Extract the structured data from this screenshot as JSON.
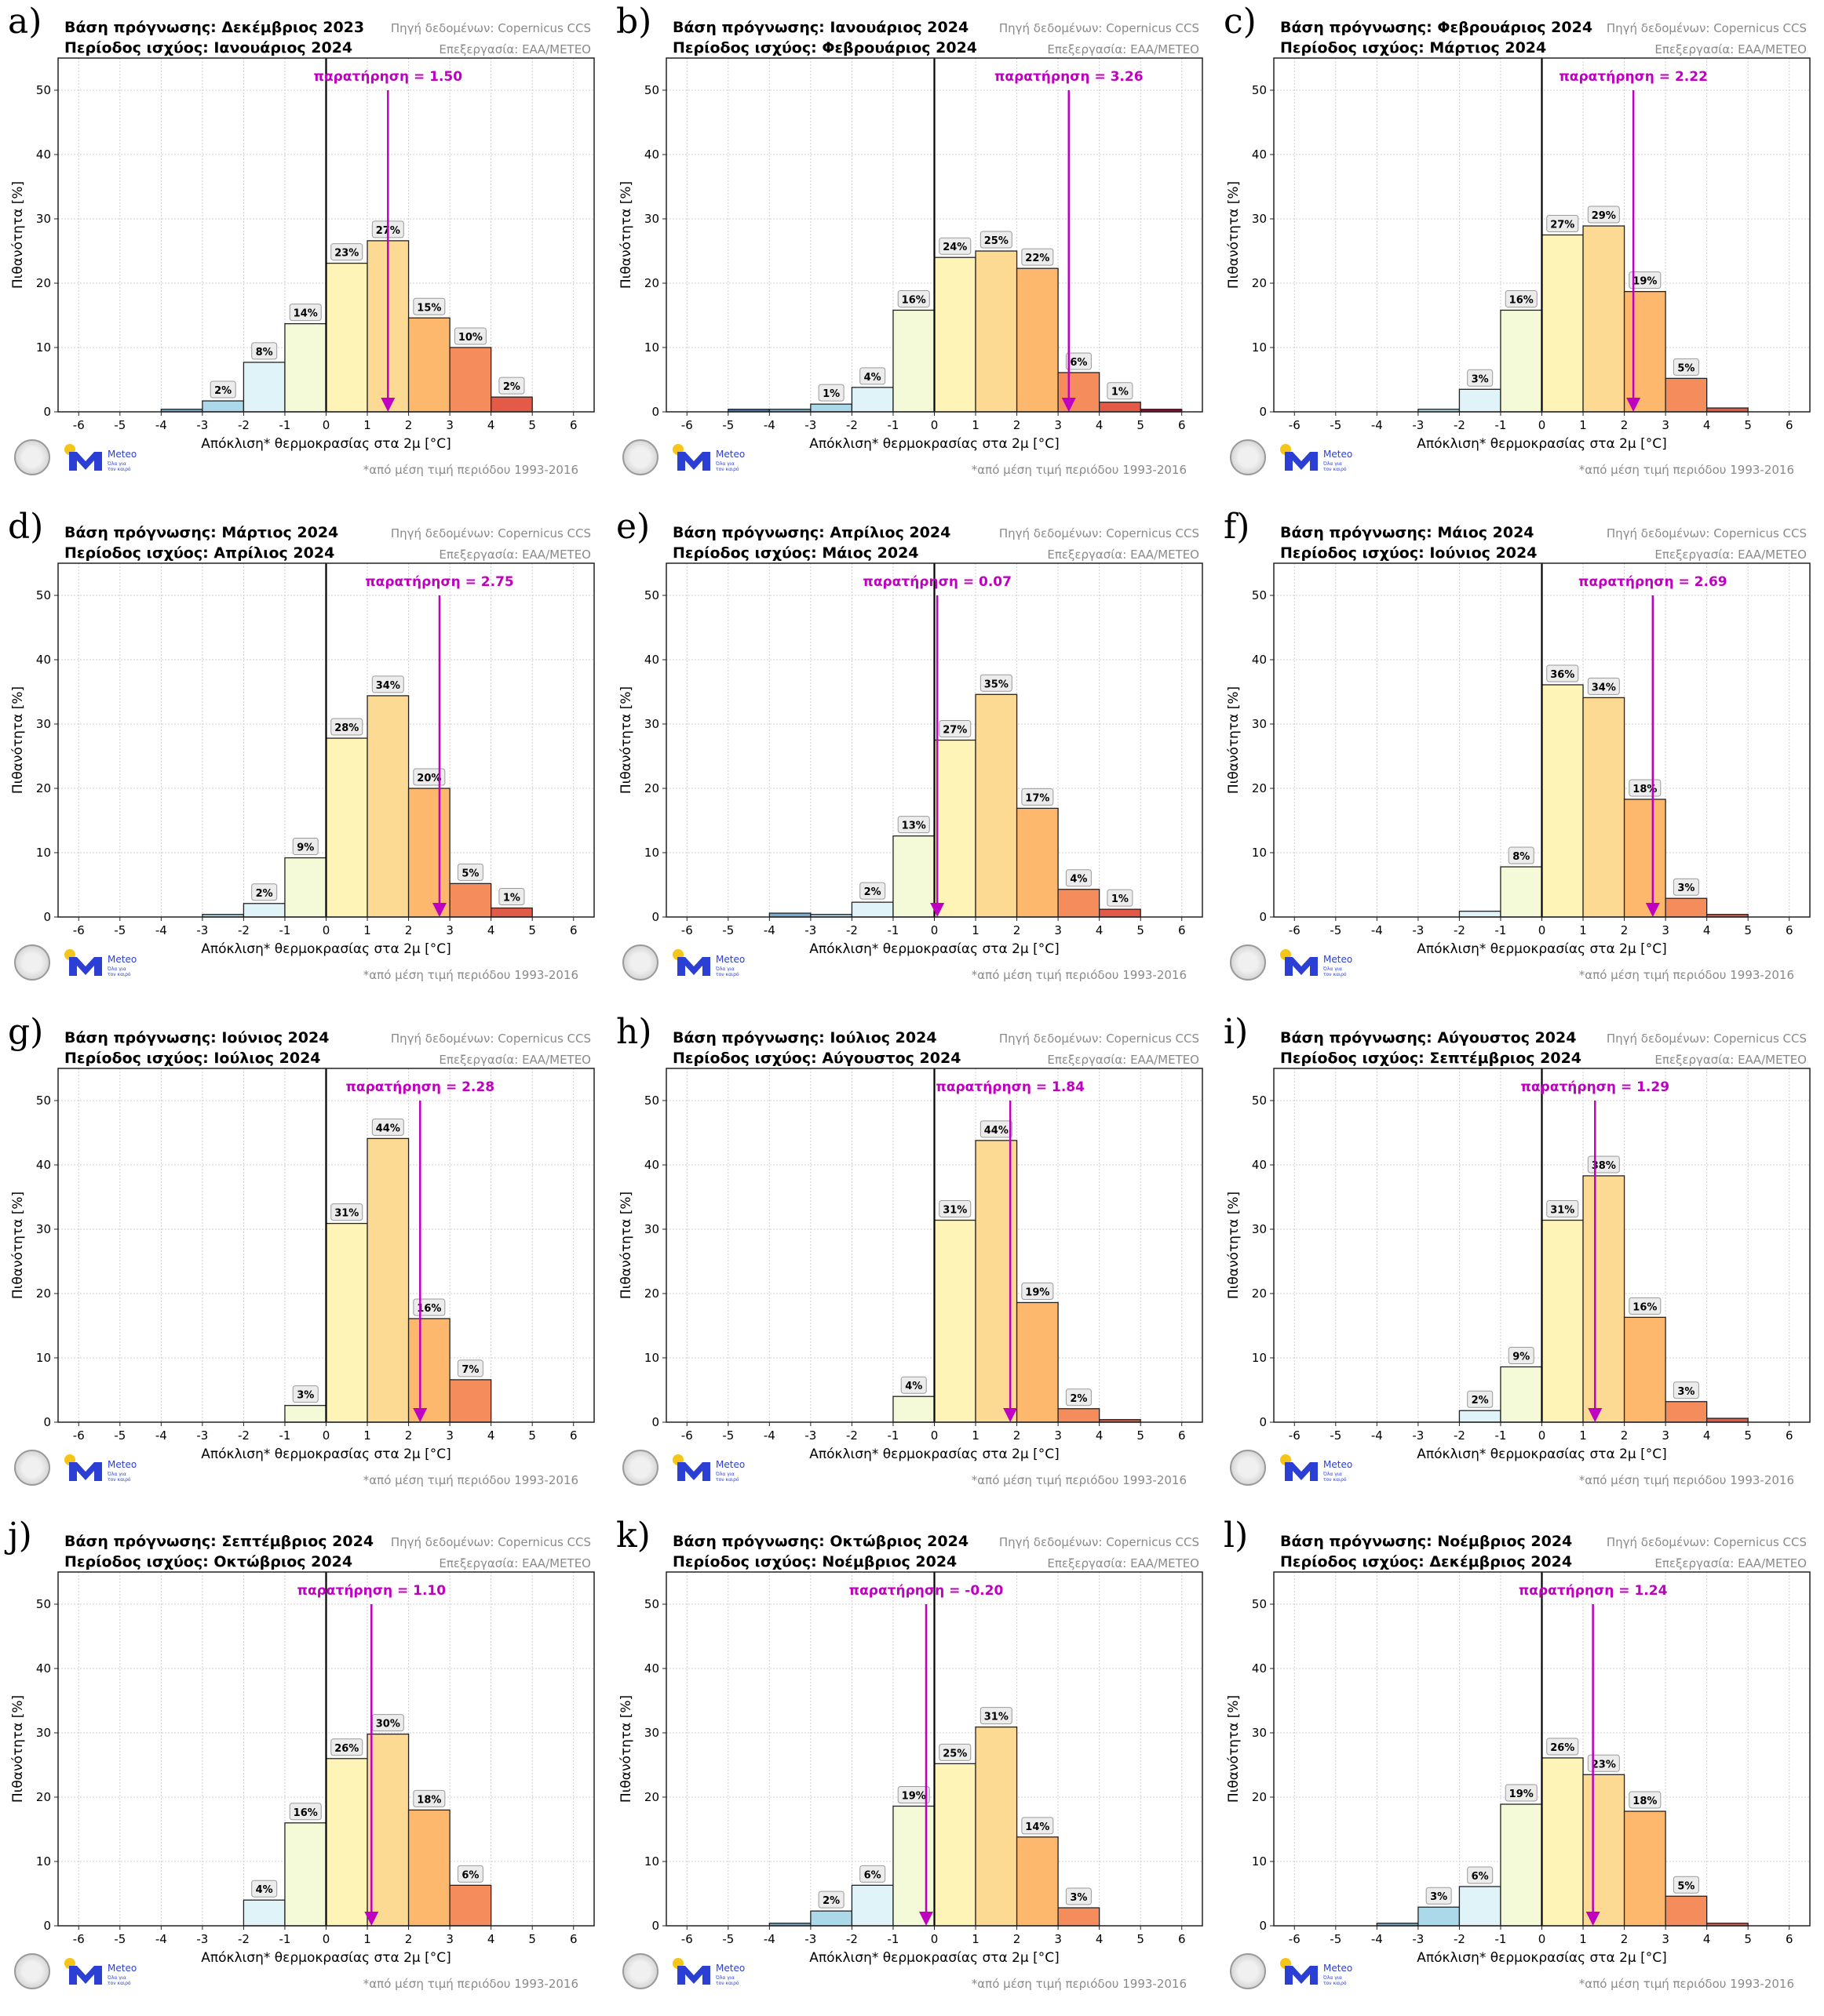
{
  "chart_data": [
    {
      "letter": "a)",
      "type": "bar",
      "forecast_base": "Βάση πρόγνωσης: Δεκέμβριος 2023",
      "valid_period": "Περίοδος ισχύος: Ιανουάριος 2024",
      "observation": 1.5,
      "observation_label": "παρατήρηση = 1.50",
      "bins": [
        [
          -4,
          -3,
          0.4,
          ""
        ],
        [
          -3,
          -2,
          1.7,
          "2%"
        ],
        [
          -2,
          -1,
          7.7,
          "8%"
        ],
        [
          -1,
          0,
          13.7,
          "14%"
        ],
        [
          0,
          1,
          23.1,
          "23%"
        ],
        [
          1,
          2,
          26.6,
          "27%"
        ],
        [
          2,
          3,
          14.6,
          "15%"
        ],
        [
          3,
          4,
          10.0,
          "10%"
        ],
        [
          4,
          5,
          2.3,
          "2%"
        ]
      ]
    },
    {
      "letter": "b)",
      "type": "bar",
      "forecast_base": "Βάση πρόγνωσης: Ιανουάριος 2024",
      "valid_period": "Περίοδος ισχύος: Φεβρουάριος 2024",
      "observation": 3.26,
      "observation_label": "παρατήρηση = 3.26",
      "bins": [
        [
          -5,
          -4,
          0.4,
          ""
        ],
        [
          -4,
          -3,
          0.4,
          ""
        ],
        [
          -3,
          -2,
          1.2,
          "1%"
        ],
        [
          -2,
          -1,
          3.8,
          "4%"
        ],
        [
          -1,
          0,
          15.8,
          "16%"
        ],
        [
          0,
          1,
          24.0,
          "24%"
        ],
        [
          1,
          2,
          25.0,
          "25%"
        ],
        [
          2,
          3,
          22.3,
          "22%"
        ],
        [
          3,
          4,
          6.1,
          "6%"
        ],
        [
          4,
          5,
          1.5,
          "1%"
        ],
        [
          5,
          6,
          0.4,
          ""
        ]
      ]
    },
    {
      "letter": "c)",
      "type": "bar",
      "forecast_base": "Βάση πρόγνωσης: Φεβρουάριος 2024",
      "valid_period": "Περίοδος ισχύος: Μάρτιος 2024",
      "observation": 2.22,
      "observation_label": "παρατήρηση = 2.22",
      "bins": [
        [
          -3,
          -2,
          0.4,
          ""
        ],
        [
          -2,
          -1,
          3.5,
          "3%"
        ],
        [
          -1,
          0,
          15.8,
          "16%"
        ],
        [
          0,
          1,
          27.5,
          "27%"
        ],
        [
          1,
          2,
          28.9,
          "29%"
        ],
        [
          2,
          3,
          18.7,
          "19%"
        ],
        [
          3,
          4,
          5.2,
          "5%"
        ],
        [
          4,
          5,
          0.6,
          ""
        ]
      ]
    },
    {
      "letter": "d)",
      "type": "bar",
      "forecast_base": "Βάση πρόγνωσης: Μάρτιος 2024",
      "valid_period": "Περίοδος ισχύος: Απρίλιος 2024",
      "observation": 2.75,
      "observation_label": "παρατήρηση = 2.75",
      "bins": [
        [
          -3,
          -2,
          0.4,
          ""
        ],
        [
          -2,
          -1,
          2.1,
          "2%"
        ],
        [
          -1,
          0,
          9.2,
          "9%"
        ],
        [
          0,
          1,
          27.8,
          "28%"
        ],
        [
          1,
          2,
          34.4,
          "34%"
        ],
        [
          2,
          3,
          20.0,
          "20%"
        ],
        [
          3,
          4,
          5.2,
          "5%"
        ],
        [
          4,
          5,
          1.4,
          "1%"
        ]
      ]
    },
    {
      "letter": "e)",
      "type": "bar",
      "forecast_base": "Βάση πρόγνωσης: Απρίλιος 2024",
      "valid_period": "Περίοδος ισχύος: Μάιος 2024",
      "observation": 0.07,
      "observation_label": "παρατήρηση = 0.07",
      "bins": [
        [
          -4,
          -3,
          0.6,
          ""
        ],
        [
          -3,
          -2,
          0.4,
          ""
        ],
        [
          -2,
          -1,
          2.3,
          "2%"
        ],
        [
          -1,
          0,
          12.6,
          "13%"
        ],
        [
          0,
          1,
          27.5,
          "27%"
        ],
        [
          1,
          2,
          34.6,
          "35%"
        ],
        [
          2,
          3,
          16.9,
          "17%"
        ],
        [
          3,
          4,
          4.3,
          "4%"
        ],
        [
          4,
          5,
          1.2,
          "1%"
        ]
      ]
    },
    {
      "letter": "f)",
      "type": "bar",
      "forecast_base": "Βάση πρόγνωσης: Μάιος 2024",
      "valid_period": "Περίοδος ισχύος: Ιούνιος 2024",
      "observation": 2.69,
      "observation_label": "παρατήρηση = 2.69",
      "bins": [
        [
          -2,
          -1,
          0.9,
          ""
        ],
        [
          -1,
          0,
          7.8,
          "8%"
        ],
        [
          0,
          1,
          36.1,
          "36%"
        ],
        [
          1,
          2,
          34.1,
          "34%"
        ],
        [
          2,
          3,
          18.3,
          "18%"
        ],
        [
          3,
          4,
          2.9,
          "3%"
        ],
        [
          4,
          5,
          0.4,
          ""
        ]
      ]
    },
    {
      "letter": "g)",
      "type": "bar",
      "forecast_base": "Βάση πρόγνωσης: Ιούνιος 2024",
      "valid_period": "Περίοδος ισχύος: Ιούλιος 2024",
      "observation": 2.28,
      "observation_label": "παρατήρηση = 2.28",
      "bins": [
        [
          -1,
          0,
          2.6,
          "3%"
        ],
        [
          0,
          1,
          30.9,
          "31%"
        ],
        [
          1,
          2,
          44.1,
          "44%"
        ],
        [
          2,
          3,
          16.1,
          "16%"
        ],
        [
          3,
          4,
          6.6,
          "7%"
        ]
      ]
    },
    {
      "letter": "h)",
      "type": "bar",
      "forecast_base": "Βάση πρόγνωσης: Ιούλιος 2024",
      "valid_period": "Περίοδος ισχύος: Αύγουστος 2024",
      "observation": 1.84,
      "observation_label": "παρατήρηση = 1.84",
      "bins": [
        [
          -1,
          0,
          4.0,
          "4%"
        ],
        [
          0,
          1,
          31.4,
          "31%"
        ],
        [
          1,
          2,
          43.8,
          "44%"
        ],
        [
          2,
          3,
          18.6,
          "19%"
        ],
        [
          3,
          4,
          2.1,
          "2%"
        ],
        [
          4,
          5,
          0.4,
          ""
        ]
      ]
    },
    {
      "letter": "i)",
      "type": "bar",
      "forecast_base": "Βάση πρόγνωσης: Αύγουστος 2024",
      "valid_period": "Περίοδος ισχύος: Σεπτέμβριος 2024",
      "observation": 1.29,
      "observation_label": "παρατήρηση = 1.29",
      "bins": [
        [
          -2,
          -1,
          1.8,
          "2%"
        ],
        [
          -1,
          0,
          8.6,
          "9%"
        ],
        [
          0,
          1,
          31.4,
          "31%"
        ],
        [
          1,
          2,
          38.3,
          "38%"
        ],
        [
          2,
          3,
          16.3,
          "16%"
        ],
        [
          3,
          4,
          3.2,
          "3%"
        ],
        [
          4,
          5,
          0.6,
          ""
        ]
      ]
    },
    {
      "letter": "j)",
      "type": "bar",
      "forecast_base": "Βάση πρόγνωσης: Σεπτέμβριος 2024",
      "valid_period": "Περίοδος ισχύος: Οκτώβριος 2024",
      "observation": 1.1,
      "observation_label": "παρατήρηση = 1.10",
      "bins": [
        [
          -2,
          -1,
          4.0,
          "4%"
        ],
        [
          -1,
          0,
          16.0,
          "16%"
        ],
        [
          0,
          1,
          26.0,
          "26%"
        ],
        [
          1,
          2,
          29.8,
          "30%"
        ],
        [
          2,
          3,
          18.0,
          "18%"
        ],
        [
          3,
          4,
          6.3,
          "6%"
        ]
      ]
    },
    {
      "letter": "k)",
      "type": "bar",
      "forecast_base": "Βάση πρόγνωσης: Οκτώβριος 2024",
      "valid_period": "Περίοδος ισχύος: Νοέμβριος 2024",
      "observation": -0.2,
      "observation_label": "παρατήρηση = -0.20",
      "bins": [
        [
          -4,
          -3,
          0.4,
          ""
        ],
        [
          -3,
          -2,
          2.3,
          "2%"
        ],
        [
          -2,
          -1,
          6.3,
          "6%"
        ],
        [
          -1,
          0,
          18.6,
          "19%"
        ],
        [
          0,
          1,
          25.2,
          "25%"
        ],
        [
          1,
          2,
          30.9,
          "31%"
        ],
        [
          2,
          3,
          13.8,
          "14%"
        ],
        [
          3,
          4,
          2.8,
          "3%"
        ]
      ]
    },
    {
      "letter": "l)",
      "type": "bar",
      "forecast_base": "Βάση πρόγνωσης: Νοέμβριος 2024",
      "valid_period": "Περίοδος ισχύος: Δεκέμβριος 2024",
      "observation": 1.24,
      "observation_label": "παρατήρηση = 1.24",
      "bins": [
        [
          -4,
          -3,
          0.4,
          ""
        ],
        [
          -3,
          -2,
          2.9,
          "3%"
        ],
        [
          -2,
          -1,
          6.1,
          "6%"
        ],
        [
          -1,
          0,
          18.9,
          "19%"
        ],
        [
          0,
          1,
          26.1,
          "26%"
        ],
        [
          1,
          2,
          23.5,
          "23%"
        ],
        [
          2,
          3,
          17.8,
          "18%"
        ],
        [
          3,
          4,
          4.6,
          "5%"
        ],
        [
          4,
          5,
          0.4,
          ""
        ]
      ]
    }
  ],
  "common": {
    "source_label": "Πηγή δεδομένων: Copernicus CCS",
    "processing_label": "Επεξεργασία: ΕΑΑ/METEO",
    "xlabel": "Απόκλιση* θερμοκρασίας στα 2μ [°C]",
    "ylabel": "Πιθανότητα [%]",
    "footnote": "*από μέση τιμή περιόδου 1993-2016",
    "xticks": [
      -6,
      -5,
      -4,
      -3,
      -2,
      -1,
      0,
      1,
      2,
      3,
      4,
      5,
      6
    ],
    "yticks": [
      0,
      10,
      20,
      30,
      40,
      50
    ],
    "xlim": [
      -6.5,
      6.5
    ],
    "ylim": [
      0,
      55
    ],
    "grid": true,
    "logo_name": "Meteo",
    "logo_tagline": "Όλα για τον καιρό",
    "observation_color": "#c000c0",
    "bin_colors": {
      "-6": "#313695",
      "-5": "#4575b4",
      "-4": "#74add1",
      "-3": "#abd9e9",
      "-2": "#e0f3f8",
      "-1": "#f4fad8",
      "0": "#fff4b8",
      "1": "#fdda94",
      "2": "#fdb86e",
      "3": "#f58c5c",
      "4": "#e35a46",
      "5": "#a50026"
    }
  }
}
